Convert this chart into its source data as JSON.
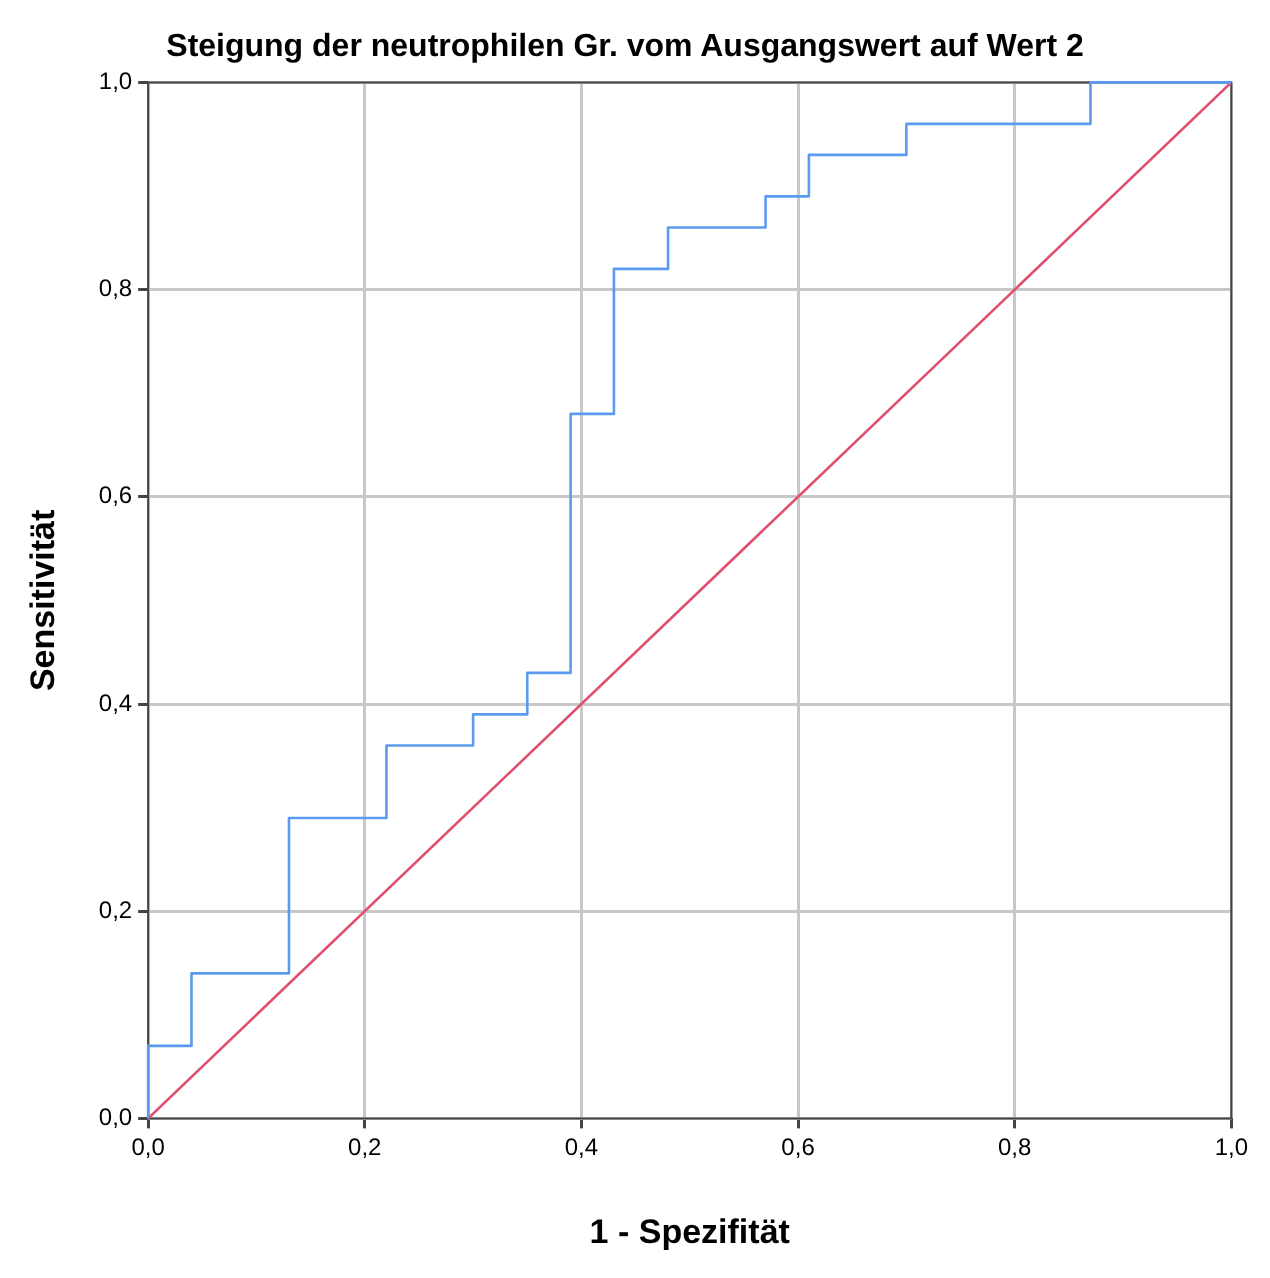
{
  "chart_data": {
    "type": "step",
    "title": "Steigung der neutrophilen Gr. vom Ausgangswert auf Wert 2",
    "xlabel": "1 - Spezifität",
    "ylabel": "Sensitivität",
    "series": [
      {
        "color": "#5b9bef",
        "x": [
          0,
          0.04,
          0.13,
          0.22,
          0.3,
          0.35,
          0.39,
          0.43,
          0.48,
          0.57,
          0.61,
          0.7,
          0.87,
          1.0
        ],
        "values": [
          0,
          0.07,
          0.14,
          0.29,
          0.36,
          0.39,
          0.43,
          0.68,
          0.82,
          0.86,
          0.89,
          0.93,
          0.96,
          1.0
        ]
      },
      {
        "type": "line",
        "color": "#e0506e",
        "x": [
          0,
          1
        ],
        "values": [
          0,
          1
        ]
      }
    ],
    "xlim": [
      0,
      1
    ],
    "ylim": [
      0,
      1
    ],
    "xticks": [
      {
        "value": 0,
        "label": "0,0"
      },
      {
        "value": 0.2,
        "label": "0,2"
      },
      {
        "value": 0.4,
        "label": "0,4"
      },
      {
        "value": 0.6,
        "label": "0,6"
      },
      {
        "value": 0.8,
        "label": "0,8"
      },
      {
        "value": 1,
        "label": "1,0"
      }
    ],
    "yticks": [
      {
        "value": 0,
        "label": "0,0"
      },
      {
        "value": 0.2,
        "label": "0,2"
      },
      {
        "value": 0.4,
        "label": "0,4"
      },
      {
        "value": 0.6,
        "label": "0,6"
      },
      {
        "value": 0.8,
        "label": "0,8"
      },
      {
        "value": 1,
        "label": "1,0"
      }
    ],
    "grid": true,
    "legend": false,
    "marker": "none",
    "line_style": "solid"
  }
}
